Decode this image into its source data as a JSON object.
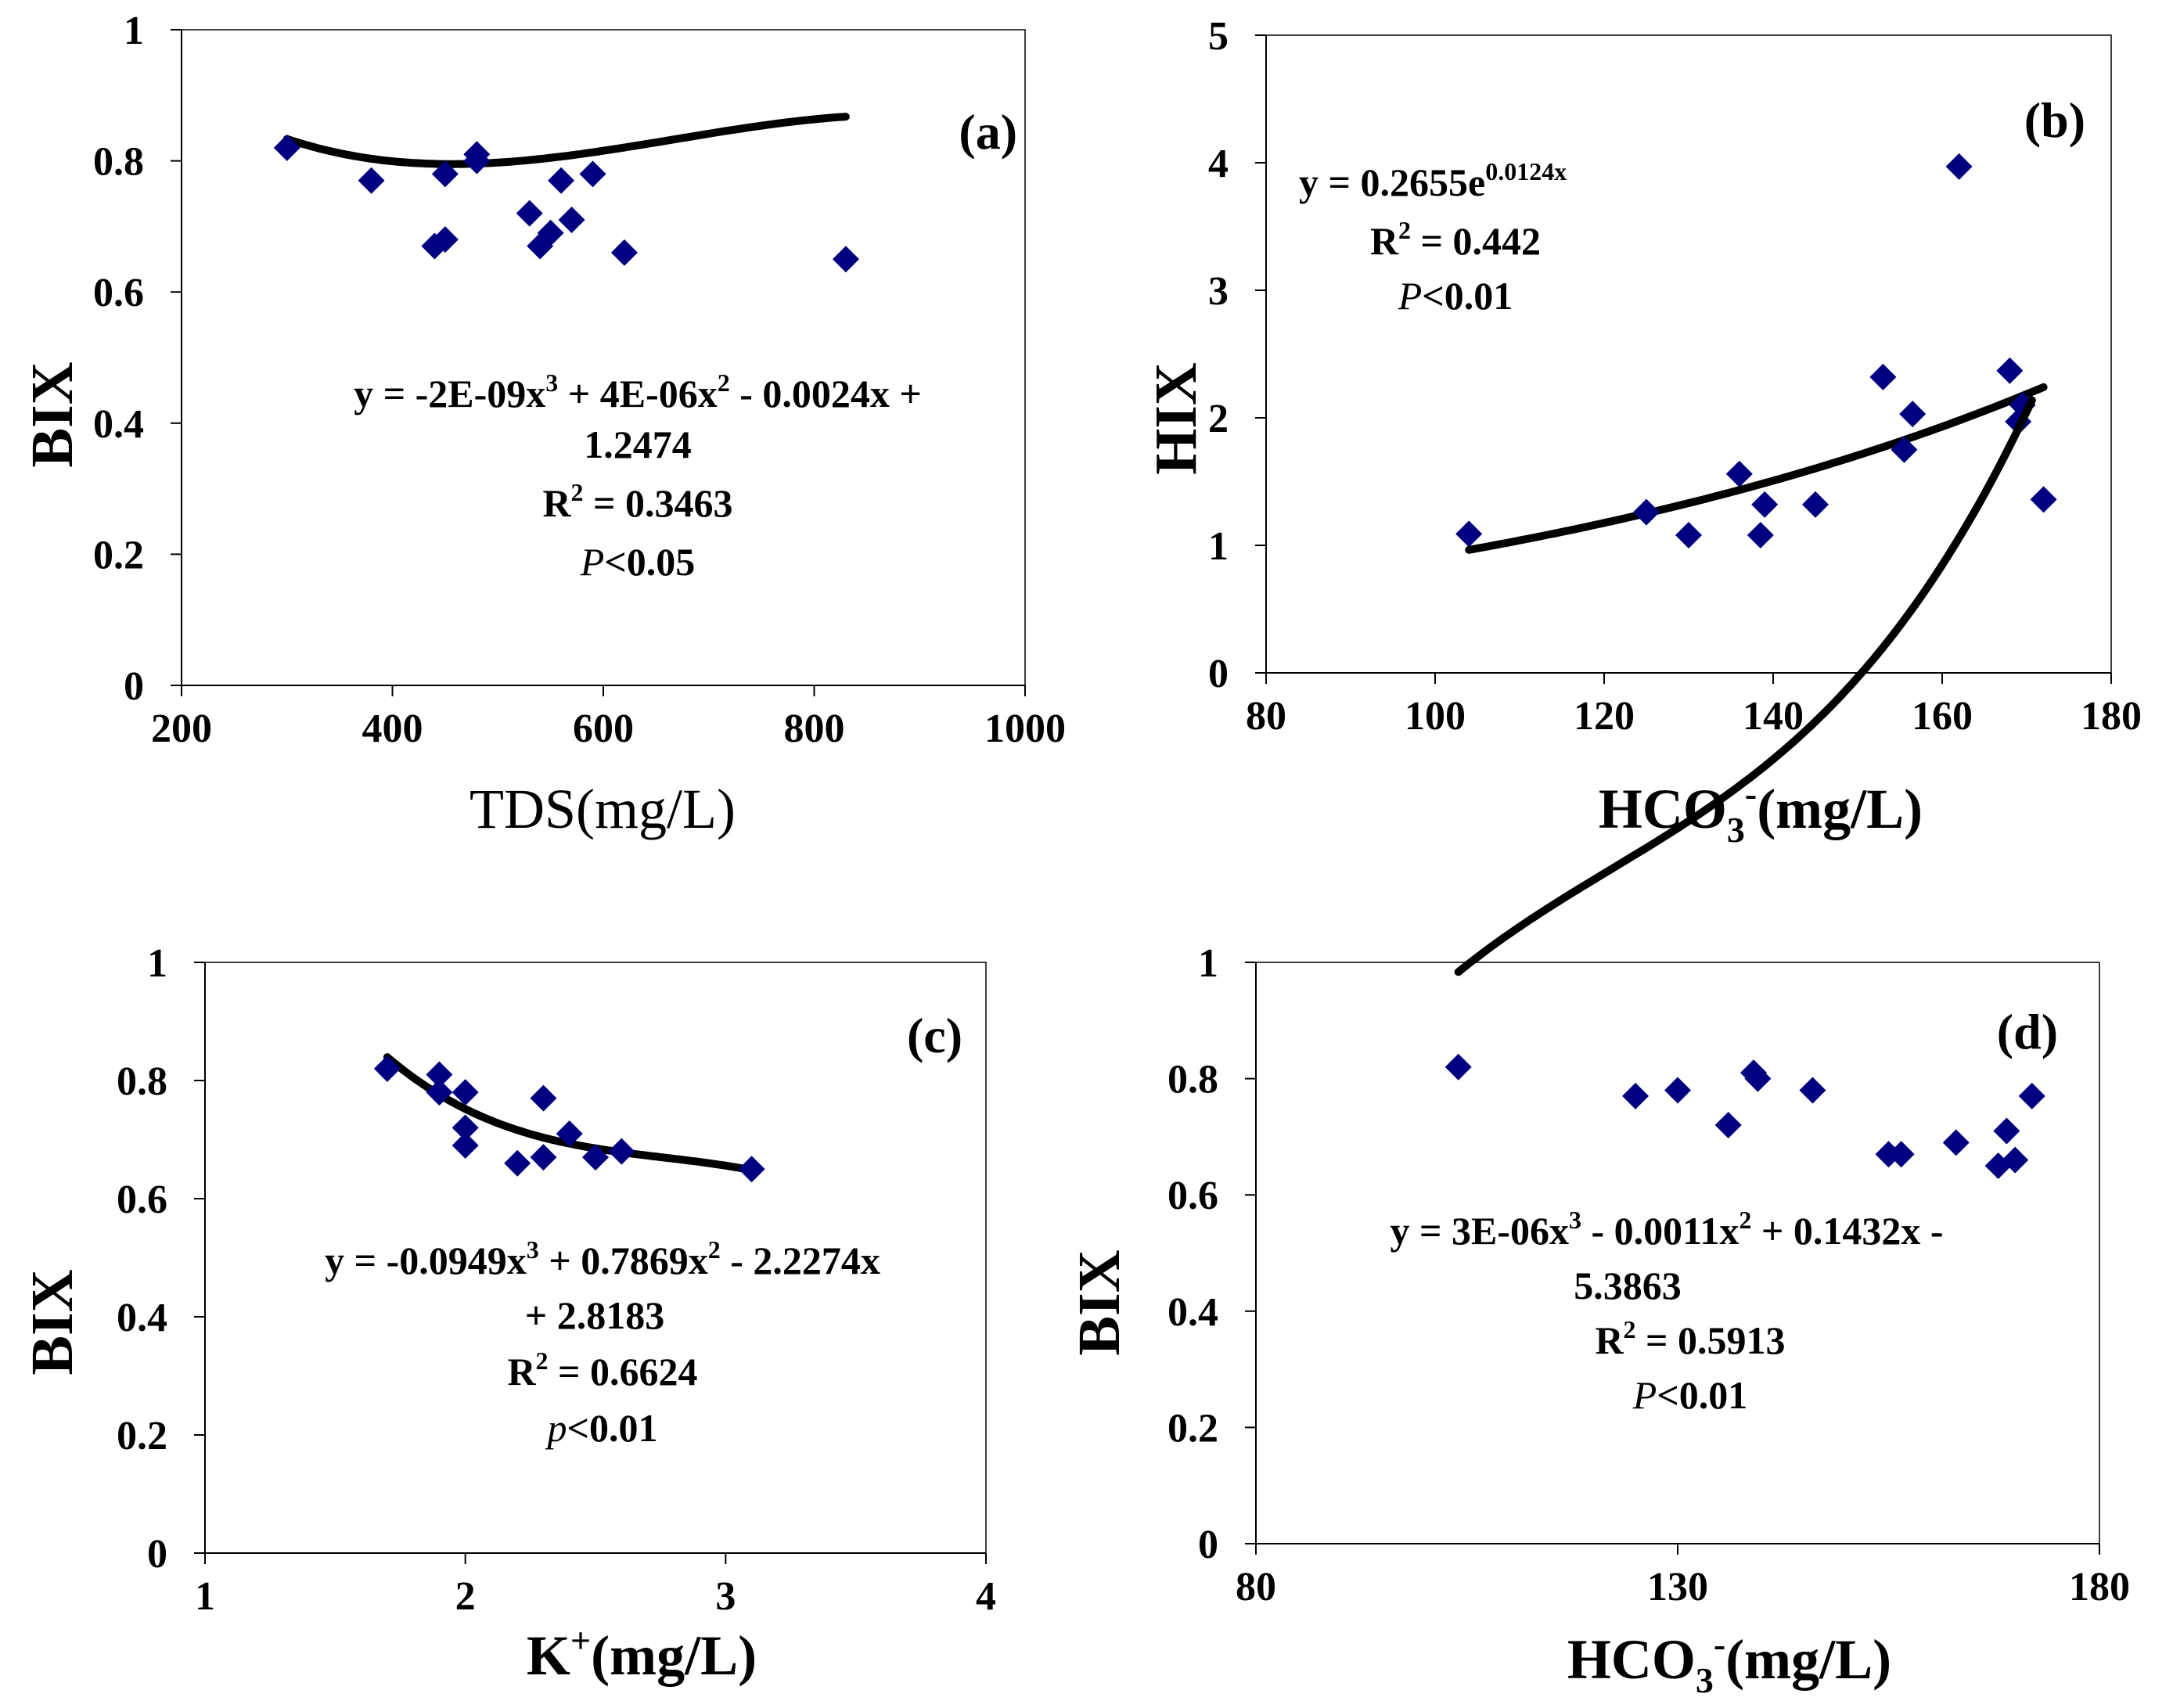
{
  "chart_data": [
    {
      "id": "a",
      "type": "scatter",
      "panel_label": "(a)",
      "xlabel": "TDS(mg/L)",
      "ylabel": "BIX",
      "xlim": [
        200,
        1000
      ],
      "ylim": [
        0,
        1
      ],
      "xticks": [
        "200",
        "400",
        "600",
        "800",
        "1000"
      ],
      "yticks": [
        "0",
        "0.2",
        "0.4",
        "0.6",
        "0.8",
        "1"
      ],
      "x": [
        300,
        380,
        440,
        450,
        450,
        480,
        480,
        530,
        540,
        550,
        560,
        570,
        590,
        620,
        830
      ],
      "y": [
        0.82,
        0.77,
        0.67,
        0.68,
        0.78,
        0.8,
        0.81,
        0.72,
        0.67,
        0.69,
        0.77,
        0.71,
        0.78,
        0.66,
        0.65
      ],
      "fit": {
        "kind": "cubic",
        "coef": [
          -2e-09,
          4e-06,
          -0.0024,
          1.2474
        ],
        "x_range": [
          300,
          830
        ]
      },
      "equation": {
        "y_eq": "y = -2E-09x",
        "sup3": "3",
        "mid": " + 4E-06x",
        "sup2": "2",
        "tail": " - 0.0024x +",
        "line2": "1.2474",
        "r2_pre": "R",
        "r2_sup": "2",
        "r2_val": " = 0.3463",
        "p_sym": "P",
        "p_val": "<0.05"
      }
    },
    {
      "id": "b",
      "type": "scatter",
      "panel_label": "(b)",
      "xlabel_main": "HCO",
      "xlabel_sub": "3",
      "xlabel_sup": "-",
      "xlabel_unit": "(mg/L)",
      "ylabel": "HIX",
      "xlim": [
        80,
        180
      ],
      "ylim": [
        0,
        5
      ],
      "xticks": [
        "80",
        "100",
        "120",
        "140",
        "160",
        "180"
      ],
      "yticks": [
        "0",
        "1",
        "2",
        "3",
        "4",
        "5"
      ],
      "x": [
        104,
        125,
        130,
        136,
        138.5,
        139,
        145,
        153,
        155.5,
        156.5,
        162,
        168,
        169,
        169.5,
        172
      ],
      "y": [
        1.09,
        1.26,
        1.08,
        1.56,
        1.08,
        1.32,
        1.32,
        2.32,
        1.75,
        2.03,
        3.97,
        2.37,
        1.97,
        2.1,
        1.36
      ],
      "fit": {
        "kind": "exp",
        "a": 0.2655,
        "b": 0.0124,
        "x_range": [
          104,
          172
        ]
      },
      "equation": {
        "y_pre": "y = 0.2655e",
        "y_sup": "0.0124x",
        "r2_pre": "R",
        "r2_sup": "2",
        "r2_val": " = 0.442",
        "p_sym": "P",
        "p_val": "<0.01"
      }
    },
    {
      "id": "c",
      "type": "scatter",
      "panel_label": "(c)",
      "xlabel_main": "K",
      "xlabel_sup": "+",
      "xlabel_unit": "(mg/L)",
      "ylabel": "BIX",
      "xlim": [
        1,
        4
      ],
      "ylim": [
        0,
        1
      ],
      "xticks": [
        "1",
        "2",
        "3",
        "4"
      ],
      "yticks": [
        "0",
        "0.2",
        "0.4",
        "0.6",
        "0.8",
        "1"
      ],
      "x": [
        1.7,
        1.9,
        1.9,
        2.0,
        2.0,
        2.0,
        2.2,
        2.3,
        2.3,
        2.4,
        2.5,
        2.6,
        3.1
      ],
      "y": [
        0.82,
        0.81,
        0.78,
        0.78,
        0.72,
        0.69,
        0.66,
        0.77,
        0.67,
        0.71,
        0.67,
        0.68,
        0.65
      ],
      "fit": {
        "kind": "cubic",
        "coef": [
          -0.0949,
          0.7869,
          -2.2274,
          2.8183
        ],
        "x_range": [
          1.7,
          3.1
        ]
      },
      "equation": {
        "y_eq": "y = -0.0949x",
        "sup3": "3",
        "mid": " + 0.7869x",
        "sup2": "2",
        "tail": " - 2.2274x",
        "line2": "+ 2.8183",
        "r2_pre": "R",
        "r2_sup": "2",
        "r2_val": " = 0.6624",
        "p_sym": "p",
        "p_val": "<0.01"
      }
    },
    {
      "id": "d",
      "type": "scatter",
      "panel_label": "(d)",
      "xlabel_main": "HCO",
      "xlabel_sub": "3",
      "xlabel_sup": "-",
      "xlabel_unit": "(mg/L)",
      "ylabel": "BIX",
      "xlim": [
        80,
        180
      ],
      "ylim": [
        0,
        1
      ],
      "xticks": [
        "80",
        "130",
        "180"
      ],
      "yticks": [
        "0",
        "0.2",
        "0.4",
        "0.6",
        "0.8",
        "1"
      ],
      "x": [
        104,
        125,
        130,
        136,
        139,
        139.5,
        146,
        155,
        156.5,
        163,
        168,
        169,
        170,
        172
      ],
      "y": [
        0.82,
        0.77,
        0.78,
        0.72,
        0.81,
        0.8,
        0.78,
        0.67,
        0.67,
        0.69,
        0.65,
        0.71,
        0.66,
        0.77
      ],
      "fit": {
        "kind": "cubic",
        "coef": [
          3e-06,
          -0.0011,
          0.1432,
          -5.3863
        ],
        "x_range": [
          104,
          172
        ]
      },
      "equation": {
        "y_eq": "y = 3E-06x",
        "sup3": "3",
        "mid": " - 0.0011x",
        "sup2": "2",
        "tail": " + 0.1432x -",
        "line2": "5.3863",
        "r2_pre": "R",
        "r2_sup": "2",
        "r2_val": " = 0.5913",
        "p_sym": "P",
        "p_val": "<0.01"
      }
    }
  ],
  "colors": {
    "marker": "#000080",
    "fit_line": "#000000",
    "axis": "#000000"
  }
}
